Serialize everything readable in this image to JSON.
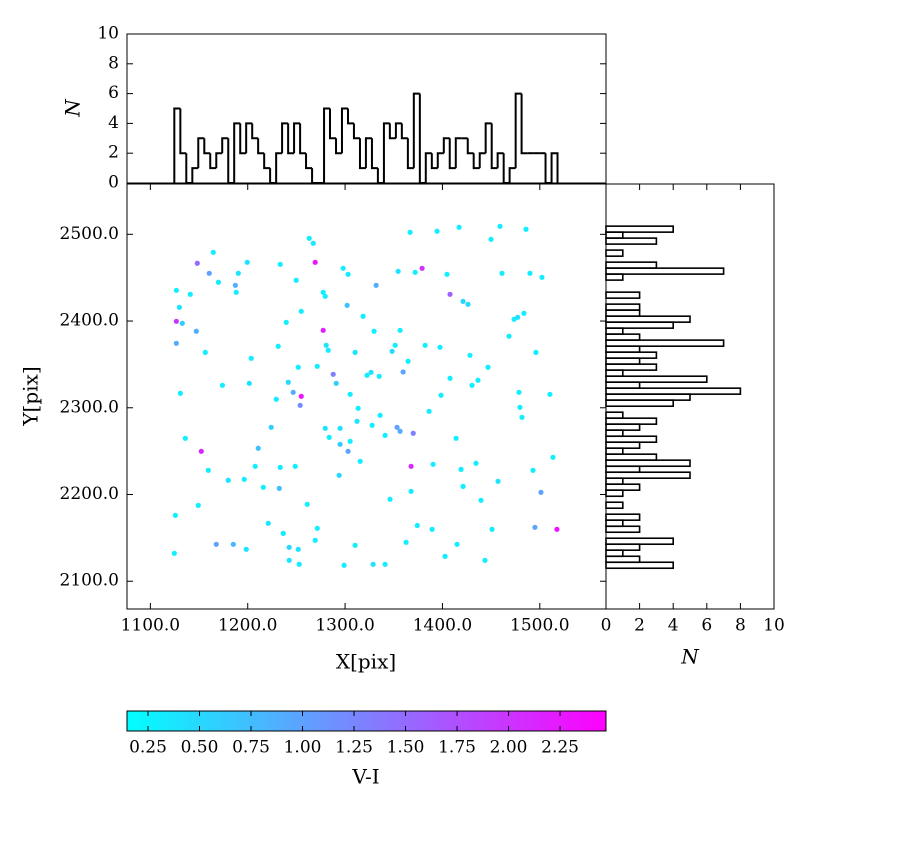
{
  "chart_data": [
    {
      "type": "scatter",
      "xlabel": "X[pix]",
      "ylabel": "Y[pix]",
      "xlim": [
        1076,
        1568
      ],
      "ylim": [
        2068,
        2558
      ],
      "xticks": [
        {
          "value": 1100,
          "label": "1100.0"
        },
        {
          "value": 1200,
          "label": "1200.0"
        },
        {
          "value": 1300,
          "label": "1300.0"
        },
        {
          "value": 1400,
          "label": "1400.0"
        },
        {
          "value": 1500,
          "label": "1500.0"
        }
      ],
      "yticks": [
        {
          "value": 2100,
          "label": "2100.0"
        },
        {
          "value": 2200,
          "label": "2200.0"
        },
        {
          "value": 2300,
          "label": "2300.0"
        },
        {
          "value": 2400,
          "label": "2400.0"
        },
        {
          "value": 2500,
          "label": "2500.0"
        }
      ],
      "colormap": [
        "#00ffff",
        "#ff00ff"
      ],
      "clim": [
        0.148,
        2.473
      ],
      "x": [
        1126.7,
        1129.8,
        1126.7,
        1132.8,
        1126.7,
        1130.8,
        1141.0,
        1147.2,
        1148.2,
        1152.3,
        1156.4,
        1160.5,
        1164.6,
        1167.7,
        1169.9,
        1174.0,
        1180.0,
        1185.2,
        1187.3,
        1188.2,
        1190.3,
        1196.4,
        1198.5,
        1199.5,
        1201.6,
        1203.6,
        1207.7,
        1210.8,
        1216.0,
        1221.1,
        1224.1,
        1229.3,
        1231.3,
        1232.4,
        1233.4,
        1233.4,
        1236.5,
        1239.6,
        1241.6,
        1242.6,
        1242.6,
        1246.7,
        1248.8,
        1249.8,
        1251.9,
        1252.9,
        1253.9,
        1255.0,
        1255.0,
        1251.9,
        1261.1,
        1263.2,
        1267.3,
        1269.3,
        1271.4,
        1269.3,
        1271.4,
        1277.5,
        1277.5,
        1279.6,
        1280.6,
        1282.7,
        1279.6,
        1283.7,
        1287.8,
        1290.9,
        1294.9,
        1294.9,
        1293.9,
        1298.0,
        1299.0,
        1302.1,
        1303.1,
        1303.1,
        1305.2,
        1305.2,
        1310.3,
        1310.3,
        1312.3,
        1313.4,
        1315.5,
        1318.5,
        1322.6,
        1326.7,
        1327.8,
        1328.8,
        1329.8,
        1331.9,
        1335.0,
        1336.0,
        1341.1,
        1341.1,
        1346.2,
        1348.3,
        1351.4,
        1353.4,
        1354.5,
        1356.5,
        1356.5,
        1359.6,
        1362.7,
        1364.7,
        1366.8,
        1367.8,
        1367.8,
        1370.0,
        1372.0,
        1374.2,
        1379.1,
        1382.2,
        1386.3,
        1389.4,
        1390.4,
        1394.5,
        1397.5,
        1398.6,
        1402.7,
        1404.7,
        1407.8,
        1407.8,
        1414.0,
        1415.0,
        1417.1,
        1419.1,
        1421.2,
        1421.2,
        1426.3,
        1428.3,
        1430.4,
        1434.5,
        1436.5,
        1439.6,
        1443.7,
        1446.8,
        1449.9,
        1451.0,
        1457.1,
        1459.1,
        1461.2,
        1468.4,
        1473.6,
        1477.3,
        1478.6,
        1479.6,
        1481.7,
        1483.7,
        1485.8,
        1489.9,
        1493.0,
        1495.0,
        1496.0,
        1501.2,
        1502.2,
        1510.4,
        1513.5,
        1517.6,
        1125.7,
        1124.6,
        1135.9,
        1149.2,
        1159.5
      ],
      "y": [
        2435.4,
        2415.8,
        2399.7,
        2397.4,
        2374.3,
        2316.7,
        2430.8,
        2388.2,
        2466.6,
        2249.8,
        2363.9,
        2455.0,
        2479.2,
        2142.6,
        2444.7,
        2325.9,
        2216.4,
        2142.6,
        2441.2,
        2433.1,
        2455.0,
        2217.5,
        2136.8,
        2467.7,
        2328.2,
        2357.0,
        2232.5,
        2253.3,
        2208.3,
        2166.8,
        2277.5,
        2309.8,
        2370.9,
        2207.1,
        2465.4,
        2231.3,
        2155.2,
        2398.5,
        2329.4,
        2139.1,
        2124.1,
        2317.8,
        2232.5,
        2447.0,
        2136.8,
        2119.5,
        2302.8,
        2313.2,
        2411.2,
        2346.7,
        2188.7,
        2495.4,
        2489.6,
        2467.7,
        2161.0,
        2147.2,
        2347.8,
        2433.1,
        2389.3,
        2428.5,
        2372.0,
        2366.3,
        2276.3,
        2265.9,
        2338.6,
        2328.2,
        2276.3,
        2257.9,
        2222.1,
        2460.8,
        2118.4,
        2418.1,
        2453.9,
        2249.8,
        2315.5,
        2261.3,
        2141.4,
        2363.9,
        2284.4,
        2299.4,
        2238.3,
        2405.5,
        2337.5,
        2340.9,
        2279.8,
        2119.5,
        2388.2,
        2441.2,
        2336.3,
        2291.3,
        2119.5,
        2268.2,
        2194.5,
        2365.1,
        2372.0,
        2277.5,
        2457.3,
        2389.3,
        2272.9,
        2341.3,
        2144.9,
        2353.6,
        2502.3,
        2232.5,
        2203.7,
        2270.6,
        2456.2,
        2164.3,
        2460.8,
        2372.0,
        2295.9,
        2159.9,
        2234.8,
        2503.5,
        2369.7,
        2314.4,
        2128.7,
        2453.9,
        2430.8,
        2334.0,
        2264.8,
        2142.6,
        2508.1,
        2229.0,
        2422.7,
        2209.4,
        2419.3,
        2360.5,
        2325.9,
        2236.0,
        2331.7,
        2193.3,
        2124.1,
        2346.7,
        2494.2,
        2159.9,
        2215.2,
        2509.2,
        2455.0,
        2382.5,
        2402.0,
        2404.3,
        2317.8,
        2300.5,
        2289.0,
        2408.9,
        2505.8,
        2455.0,
        2227.9,
        2162.2,
        2363.9,
        2202.5,
        2450.4,
        2315.5,
        2242.9,
        2159.9,
        2176.0,
        2132.2,
        2264.8,
        2187.5,
        2227.9
      ],
      "color_values": [
        0.3,
        0.4,
        2.0,
        0.6,
        0.9,
        0.3,
        0.3,
        0.9,
        1.5,
        2.1,
        0.3,
        1.0,
        0.3,
        1.0,
        0.3,
        0.3,
        0.4,
        0.8,
        0.9,
        0.3,
        0.4,
        0.3,
        0.4,
        0.4,
        0.4,
        0.3,
        0.3,
        0.7,
        0.3,
        0.4,
        0.6,
        0.3,
        0.3,
        0.7,
        0.3,
        0.3,
        0.3,
        0.3,
        0.5,
        0.5,
        0.4,
        0.9,
        0.3,
        0.3,
        0.4,
        0.3,
        1.2,
        2.3,
        0.3,
        0.3,
        0.3,
        0.3,
        0.4,
        2.3,
        0.3,
        0.3,
        0.3,
        0.3,
        2.2,
        0.3,
        0.4,
        0.3,
        0.4,
        0.3,
        1.3,
        0.6,
        0.4,
        0.6,
        0.5,
        0.3,
        0.3,
        0.7,
        0.3,
        1.0,
        0.3,
        0.3,
        0.3,
        0.4,
        0.4,
        0.3,
        0.3,
        0.3,
        0.3,
        0.4,
        0.3,
        0.4,
        0.3,
        0.9,
        0.3,
        0.3,
        0.3,
        0.3,
        0.3,
        0.5,
        0.3,
        1.0,
        0.4,
        0.3,
        0.9,
        1.0,
        0.3,
        0.3,
        0.3,
        2.1,
        0.3,
        1.3,
        0.3,
        0.3,
        2.0,
        0.3,
        0.3,
        0.3,
        0.3,
        0.3,
        0.3,
        0.3,
        0.3,
        0.3,
        1.6,
        0.3,
        0.3,
        0.3,
        0.3,
        0.3,
        0.5,
        0.3,
        0.5,
        0.3,
        0.3,
        0.3,
        0.3,
        0.3,
        0.3,
        0.3,
        0.3,
        0.3,
        0.4,
        0.3,
        0.3,
        0.3,
        0.3,
        0.4,
        0.3,
        0.3,
        0.3,
        0.3,
        0.3,
        0.3,
        0.3,
        1.0,
        0.3,
        1.0,
        0.3,
        0.3,
        0.3,
        2.3,
        0.3,
        0.3,
        0.3,
        0.3,
        0.3
      ]
    },
    {
      "type": "histogram",
      "orientation": "vertical",
      "ylabel": "N",
      "xlim": [
        1076,
        1568
      ],
      "ylim": [
        0,
        10
      ],
      "yticks": [
        0,
        2,
        4,
        6,
        8,
        10
      ],
      "color": "#000000",
      "bins": [
        1124.6,
        1130.8,
        1136.9,
        1143.1,
        1149.2,
        1155.4,
        1161.5,
        1167.7,
        1173.8,
        1180.0,
        1186.1,
        1192.3,
        1198.4,
        1204.6,
        1210.7,
        1216.9,
        1223.0,
        1229.2,
        1235.3,
        1241.5,
        1247.6,
        1253.8,
        1259.9,
        1266.1,
        1272.2,
        1278.4,
        1284.5,
        1290.7,
        1296.8,
        1303.0,
        1309.1,
        1315.3,
        1321.4,
        1327.6,
        1333.7,
        1339.9,
        1346.0,
        1352.2,
        1358.3,
        1364.5,
        1370.6,
        1376.8,
        1382.9,
        1389.1,
        1395.2,
        1401.4,
        1407.5,
        1413.7,
        1419.8,
        1426.0,
        1432.1,
        1438.3,
        1444.4,
        1450.6,
        1456.7,
        1462.9,
        1469.0,
        1475.2,
        1481.3,
        1487.5,
        1493.6,
        1499.8,
        1505.9,
        1512.1,
        1518.2
      ],
      "counts": [
        5,
        2,
        0,
        1,
        3,
        2,
        1,
        2,
        3,
        0,
        4,
        2,
        4,
        3,
        2,
        1,
        0,
        2,
        4,
        2,
        4,
        2,
        1,
        0,
        0,
        5,
        3,
        2,
        5,
        4,
        3,
        1,
        3,
        1,
        0,
        4,
        3,
        4,
        3,
        1,
        6,
        0,
        2,
        1,
        2,
        3,
        1,
        3,
        3,
        2,
        1,
        2,
        4,
        1,
        2,
        0,
        1,
        6,
        2,
        2,
        2,
        2,
        0,
        2
      ]
    },
    {
      "type": "histogram",
      "orientation": "horizontal",
      "xlabel": "N",
      "xlim": [
        0,
        10
      ],
      "ylim": [
        2068,
        2558
      ],
      "xticks": [
        0,
        2,
        4,
        6,
        8,
        10
      ],
      "color": "#000000",
      "bins": [
        2115.0,
        2121.9,
        2128.8,
        2135.8,
        2142.7,
        2149.6,
        2156.5,
        2163.4,
        2170.4,
        2177.3,
        2184.2,
        2191.1,
        2198.0,
        2205.0,
        2211.9,
        2218.8,
        2225.7,
        2232.6,
        2239.6,
        2246.5,
        2253.4,
        2260.3,
        2267.2,
        2274.2,
        2281.1,
        2288.0,
        2294.9,
        2301.8,
        2308.8,
        2315.7,
        2322.6,
        2329.5,
        2336.4,
        2343.4,
        2350.3,
        2357.2,
        2364.1,
        2371.0,
        2378.0,
        2384.9,
        2391.8,
        2398.7,
        2405.6,
        2412.6,
        2419.5,
        2426.4,
        2433.3,
        2440.2,
        2447.2,
        2454.1,
        2461.0,
        2467.9,
        2474.8,
        2481.8,
        2488.7,
        2495.6,
        2502.5,
        2509.4
      ],
      "counts": [
        4,
        2,
        1,
        2,
        4,
        0,
        2,
        1,
        2,
        0,
        1,
        0,
        1,
        2,
        1,
        5,
        2,
        5,
        3,
        1,
        2,
        3,
        1,
        2,
        3,
        1,
        0,
        4,
        5,
        8,
        2,
        6,
        1,
        3,
        2,
        3,
        2,
        7,
        2,
        1,
        4,
        5,
        2,
        2,
        0,
        2,
        0,
        0,
        1,
        7,
        3,
        0,
        1,
        0,
        3,
        1,
        4
      ]
    },
    {
      "type": "colorbar",
      "label": "V-I",
      "lim": [
        0.148,
        2.473
      ],
      "colormap": [
        "#00ffff",
        "#ff00ff"
      ],
      "ticks": [
        0.25,
        {
          "value": 0.5,
          "label": "0.50"
        },
        0.75,
        {
          "value": 1,
          "label": "1.00"
        },
        1.25,
        {
          "value": 1.5,
          "label": "1.50"
        },
        1.75,
        {
          "value": 2,
          "label": "2.00"
        },
        2.25
      ]
    }
  ]
}
